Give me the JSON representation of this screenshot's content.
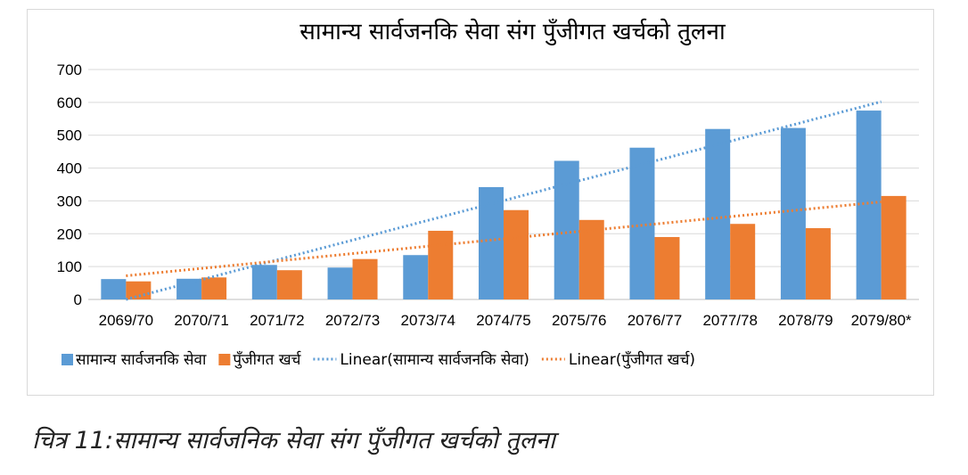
{
  "chart_data": {
    "type": "bar",
    "title": "सामान्य सार्वजनकि सेवा संग पुँजीगत खर्चको तुलना",
    "categories": [
      "2069/70",
      "2070/71",
      "2071/72",
      "2072/73",
      "2073/74",
      "2074/75",
      "2075/76",
      "2076/77",
      "2077/78",
      "2078/79",
      "2079/80*"
    ],
    "ylim": [
      0,
      700
    ],
    "yticks": [
      0,
      100,
      200,
      300,
      400,
      500,
      600,
      700
    ],
    "grid": true,
    "legend_position": "bottom",
    "series": [
      {
        "name": "सामान्य सार्वजनकि सेवा",
        "color": "#5b9bd5",
        "values": [
          62,
          63,
          105,
          97,
          135,
          342,
          422,
          462,
          519,
          522,
          575
        ]
      },
      {
        "name": "पुँजीगत खर्च",
        "color": "#ed7d31",
        "values": [
          55,
          67,
          89,
          123,
          209,
          272,
          242,
          190,
          230,
          217,
          315
        ]
      }
    ],
    "trendlines": [
      {
        "name": "Linear(सामान्य सार्वजनकि सेवा)",
        "color": "#5b9bd5",
        "start": 0,
        "end": 602
      },
      {
        "name": "Linear(पुँजीगत खर्च)",
        "color": "#ed7d31",
        "start": 72,
        "end": 297
      }
    ]
  },
  "caption": "चित्र 11:सामान्य सार्वजनिक सेवा संग पुँजीगत खर्चको तुलना"
}
